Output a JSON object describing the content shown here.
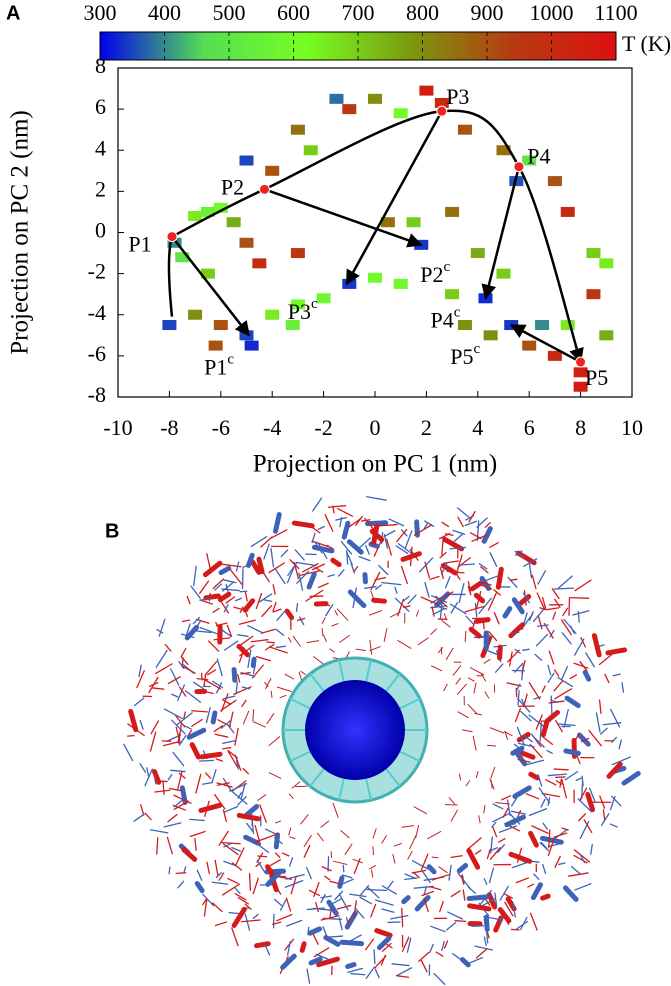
{
  "chart_data": {
    "type": "scatter",
    "panel_label": "A",
    "xlabel": "Projection on PC 1 (nm)",
    "ylabel": "Projection on PC 2 (nm)",
    "xlim": [
      -10,
      10
    ],
    "xticks": [
      -10,
      -8,
      -6,
      -4,
      -2,
      0,
      2,
      4,
      6,
      8,
      10
    ],
    "ylim": [
      -8,
      8
    ],
    "yticks": [
      -8,
      -6,
      -4,
      -2,
      0,
      2,
      4,
      6,
      8
    ],
    "colorbar": {
      "label": "T (K)",
      "lim": [
        300,
        1100
      ],
      "ticks": [
        300,
        400,
        500,
        600,
        700,
        800,
        900,
        1000,
        1100
      ],
      "colors": [
        "#0000ee",
        "#55dd55",
        "#77ff22",
        "#7a9a10",
        "#b83a12",
        "#dd1111"
      ]
    },
    "x": [
      -7.8,
      -7.5,
      -7,
      -6.5,
      -6,
      -5.5,
      -5,
      -4.5,
      -8,
      -7,
      -6,
      -5,
      -4.8,
      -4,
      -3,
      -2,
      -1,
      0,
      1,
      1.8,
      1.5,
      3,
      4,
      5,
      4.3,
      3.5,
      5.3,
      6,
      7,
      8,
      7.5,
      8.5,
      8.5,
      7.5,
      7,
      5.5,
      6,
      5,
      3.5,
      2.6,
      1,
      0,
      -1,
      -1.5,
      -3,
      -2.5,
      -4,
      -5,
      -6.5,
      -3,
      2,
      9,
      9,
      8,
      -3.2,
      -6.2,
      0.5,
      3,
      6.5,
      4.5
    ],
    "values": [
      -0.5,
      -1.2,
      0.8,
      -2,
      1.2,
      0.5,
      -0.5,
      -1.5,
      -4.5,
      -4,
      -4.5,
      -5,
      -5.5,
      -4,
      -3.5,
      -3.2,
      -2.5,
      -2.2,
      -2.5,
      -0.6,
      0.5,
      1,
      -1,
      -2,
      -3.2,
      -4.5,
      -4.5,
      -5.5,
      -6,
      -6.8,
      -4.5,
      -3,
      -1,
      1,
      2.5,
      2.5,
      3.5,
      4,
      5,
      6.3,
      5.8,
      6.5,
      6,
      6.5,
      5,
      4,
      3,
      3.5,
      1,
      -1,
      6.9,
      -1.5,
      -5,
      -7.5,
      -4.5,
      -5.5,
      0.5,
      -3,
      -4.5,
      -5
    ],
    "temperature": [
      400,
      500,
      650,
      700,
      600,
      750,
      900,
      1000,
      350,
      800,
      900,
      350,
      330,
      650,
      600,
      580,
      340,
      600,
      580,
      340,
      700,
      850,
      750,
      700,
      330,
      800,
      340,
      900,
      1000,
      1050,
      650,
      950,
      700,
      1000,
      900,
      360,
      500,
      850,
      900,
      1000,
      600,
      800,
      950,
      380,
      850,
      700,
      900,
      350,
      550,
      950,
      1050,
      650,
      750,
      1050,
      550,
      900,
      850,
      700,
      400,
      800
    ],
    "states": [
      {
        "label": "P1",
        "x": -7.9,
        "y": -0.2
      },
      {
        "label": "P2",
        "x": -4.3,
        "y": 2.1
      },
      {
        "label": "P3",
        "x": 2.6,
        "y": 5.9
      },
      {
        "label": "P4",
        "x": 5.6,
        "y": 3.2
      },
      {
        "label": "P5",
        "x": 8.0,
        "y": -6.3
      }
    ],
    "end_states": [
      {
        "label": "P1",
        "sup": "c",
        "x": -4.9,
        "y": -5.0
      },
      {
        "label": "P2",
        "sup": "c",
        "x": 1.8,
        "y": -0.6
      },
      {
        "label": "P3",
        "sup": "c",
        "x": -1.1,
        "y": -2.5
      },
      {
        "label": "P4",
        "sup": "c",
        "x": 4.3,
        "y": -3.2
      },
      {
        "label": "P5",
        "sup": "c",
        "x": 5.3,
        "y": -4.5
      }
    ]
  },
  "panel_b": {
    "label": "B"
  }
}
